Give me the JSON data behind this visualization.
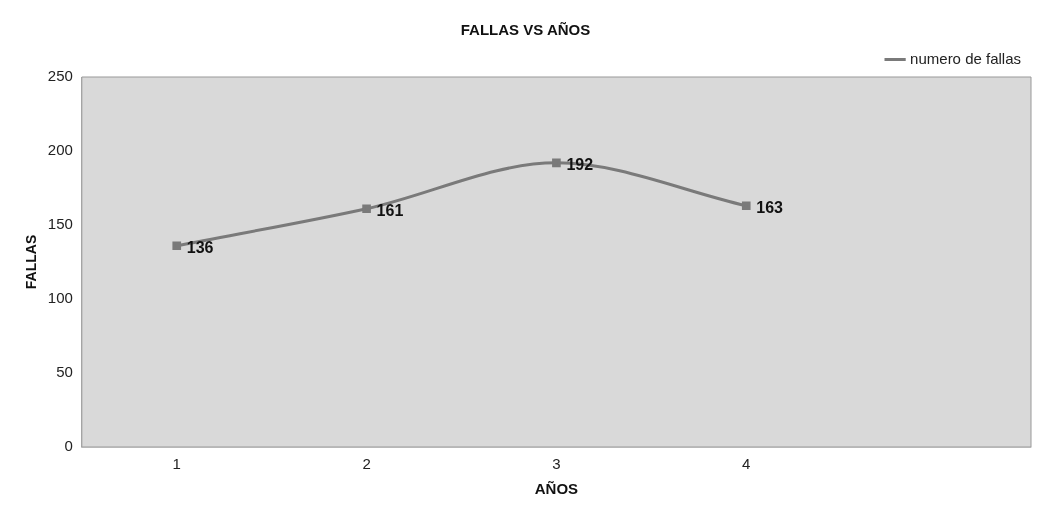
{
  "chart_data": {
    "type": "line",
    "title": "FALLAS VS AÑOS",
    "xlabel": "AÑOS",
    "ylabel": "FALLAS",
    "categories": [
      "1",
      "2",
      "3",
      "4",
      null
    ],
    "series": [
      {
        "name": "numero de fallas",
        "color": "#7a7a7a",
        "values": [
          136,
          161,
          192,
          163,
          null
        ]
      }
    ],
    "ylim": [
      0,
      250
    ],
    "yticks": [
      0,
      50,
      100,
      150,
      200,
      250
    ],
    "data_labels": true,
    "legend": "top right",
    "marker": "square",
    "line_style": "solid",
    "grid": false
  }
}
